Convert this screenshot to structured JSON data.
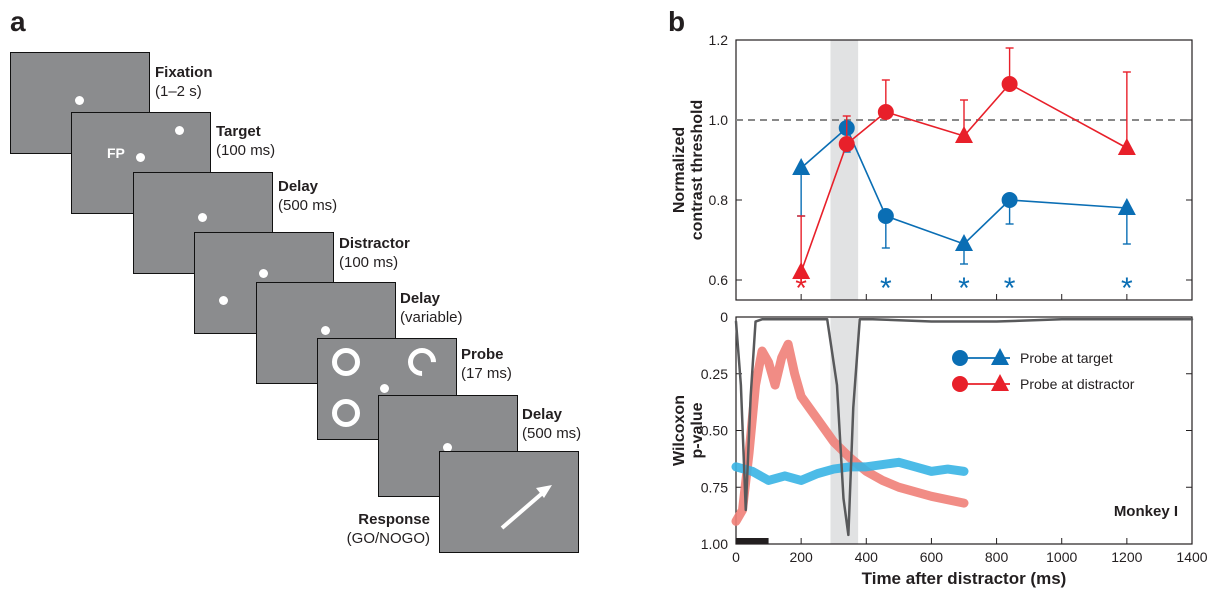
{
  "panel_a": {
    "letter": "a",
    "fp_label": "FP",
    "steps": [
      {
        "name": "Fixation",
        "time": "(1–2 s)"
      },
      {
        "name": "Target",
        "time": "(100 ms)"
      },
      {
        "name": "Delay",
        "time": "(500 ms)"
      },
      {
        "name": "Distractor",
        "time": "(100 ms)"
      },
      {
        "name": "Delay",
        "time": "(variable)"
      },
      {
        "name": "Probe",
        "time": "(17 ms)"
      },
      {
        "name": "Delay",
        "time": "(500 ms)"
      },
      {
        "name": "Response",
        "time": "(GO/NOGO)"
      }
    ]
  },
  "panel_b": {
    "letter": "b",
    "xlabel": "Time after distractor (ms)",
    "monkey_label": "Monkey I",
    "colors": {
      "blue": "#0a6eb4",
      "red": "#e8202a",
      "cyan": "#39b4e4",
      "salmon": "#f08078",
      "gray_trace": "#58595b"
    },
    "legend": [
      "Probe at target",
      "Probe at distractor"
    ],
    "chart_data": [
      {
        "type": "line",
        "ylabel": "Normalized contrast threshold",
        "xlim": [
          0,
          1400
        ],
        "ylim": [
          0.55,
          1.2
        ],
        "yticks": [
          0.6,
          0.8,
          1.0,
          1.2
        ],
        "reference_line": 1.0,
        "shaded_window": [
          290,
          375
        ],
        "series": [
          {
            "name": "Probe at target",
            "color": "blue",
            "x": [
              200,
              340,
              460,
              700,
              840,
              1200
            ],
            "y": [
              0.88,
              0.98,
              0.76,
              0.69,
              0.8,
              0.78
            ],
            "err": [
              0.12,
              0.06,
              0.08,
              0.05,
              0.06,
              0.09
            ],
            "markers": [
              "triangle",
              "circle",
              "circle",
              "triangle",
              "circle",
              "triangle"
            ]
          },
          {
            "name": "Probe at distractor",
            "color": "red",
            "x": [
              200,
              340,
              460,
              700,
              840,
              1200
            ],
            "y": [
              0.62,
              0.94,
              1.02,
              0.96,
              1.09,
              0.93
            ],
            "err": [
              0.14,
              0.07,
              0.08,
              0.09,
              0.09,
              0.19
            ],
            "markers": [
              "triangle",
              "circle",
              "circle",
              "triangle",
              "circle",
              "triangle"
            ]
          }
        ],
        "significance": [
          {
            "x": 200,
            "color": "red"
          },
          {
            "x": 460,
            "color": "blue"
          },
          {
            "x": 700,
            "color": "blue"
          },
          {
            "x": 840,
            "color": "blue"
          },
          {
            "x": 1200,
            "color": "blue"
          }
        ]
      },
      {
        "type": "line",
        "ylabel": "Wilcoxon p-value",
        "xlim": [
          0,
          1400
        ],
        "ylim": [
          1.0,
          0.0
        ],
        "yticks": [
          0,
          0.25,
          0.5,
          0.75,
          1.0
        ],
        "ytick_labels": [
          "0",
          "0.25",
          "0.50",
          "0.75",
          "1.00"
        ],
        "xticks": [
          0,
          200,
          400,
          600,
          800,
          1000,
          1200,
          1400
        ],
        "series": [
          {
            "name": "Probe at distractor",
            "color": "salmon",
            "x": [
              0,
              20,
              40,
              60,
              80,
              100,
              120,
              140,
              160,
              180,
              200,
              250,
              300,
              350,
              400,
              450,
              500,
              600,
              700
            ],
            "y": [
              0.9,
              0.85,
              0.6,
              0.3,
              0.15,
              0.2,
              0.3,
              0.18,
              0.12,
              0.25,
              0.35,
              0.45,
              0.55,
              0.62,
              0.68,
              0.72,
              0.75,
              0.79,
              0.82
            ]
          },
          {
            "name": "Probe at target",
            "color": "cyan",
            "x": [
              0,
              50,
              100,
              150,
              200,
              250,
              300,
              350,
              400,
              450,
              500,
              550,
              600,
              650,
              700
            ],
            "y": [
              0.66,
              0.68,
              0.72,
              0.7,
              0.72,
              0.69,
              0.67,
              0.66,
              0.66,
              0.65,
              0.64,
              0.66,
              0.68,
              0.67,
              0.68
            ]
          },
          {
            "name": "",
            "color": "gray_trace",
            "x": [
              0,
              15,
              30,
              45,
              60,
              80,
              100,
              200,
              280,
              310,
              330,
              345,
              360,
              380,
              420,
              600,
              800,
              1000,
              1200,
              1400
            ],
            "y": [
              0.02,
              0.3,
              0.85,
              0.35,
              0.02,
              0.01,
              0.01,
              0.01,
              0.01,
              0.3,
              0.8,
              0.96,
              0.4,
              0.01,
              0.01,
              0.02,
              0.02,
              0.01,
              0.01,
              0.01
            ]
          }
        ],
        "bar_marker": [
          0,
          100
        ]
      }
    ]
  }
}
